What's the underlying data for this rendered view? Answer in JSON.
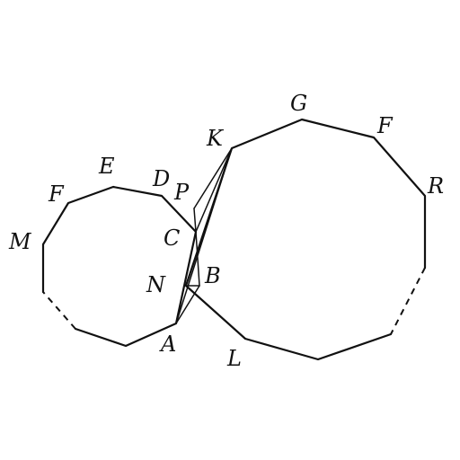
{
  "figure": {
    "description_free": true,
    "colors": {
      "stroke": "#111111",
      "background": "#ffffff"
    },
    "points": {
      "A": "A",
      "B": "B",
      "C": "C",
      "D": "D",
      "E": "E",
      "F_left": "F",
      "M": "M",
      "N": "N",
      "P": "P",
      "K": "K",
      "G": "G",
      "F_right": "F",
      "R": "R",
      "L": "L"
    }
  }
}
